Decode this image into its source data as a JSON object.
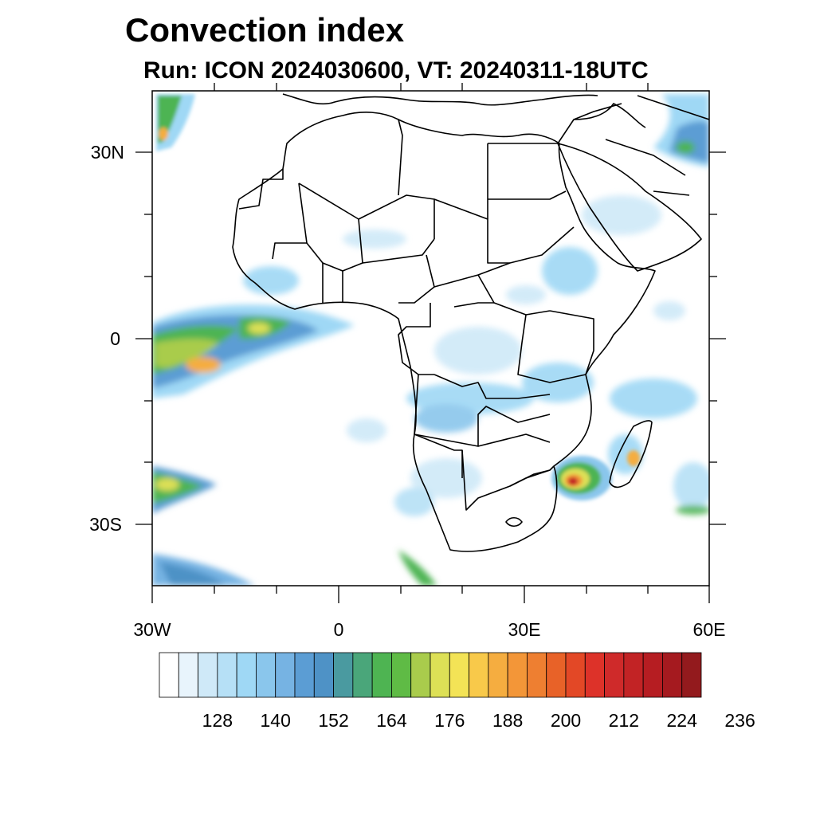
{
  "title": "Convection index",
  "subtitle": "Run: ICON 2024030600,  VT: 20240311-18UTC",
  "axes": {
    "lon_labels": [
      "30W",
      "0",
      "30E",
      "60E"
    ],
    "lat_labels": [
      "30N",
      "0",
      "30S"
    ],
    "lon_range": [
      -30,
      60
    ],
    "lat_range": [
      -40,
      40
    ]
  },
  "colorbar": {
    "colors": [
      "#ffffff",
      "#e8f4fc",
      "#cfe9f8",
      "#b6e0f6",
      "#9fd8f5",
      "#8ac6ec",
      "#76b3e3",
      "#5b9dd4",
      "#4e92c6",
      "#4a9aa0",
      "#4aa67a",
      "#4eb452",
      "#5fbb45",
      "#a9cc4c",
      "#dde056",
      "#f3e356",
      "#f8c94a",
      "#f5ad40",
      "#f39638",
      "#ee7f31",
      "#e86228",
      "#e34826",
      "#dd3229",
      "#cf2a2a",
      "#c22325",
      "#b61d22",
      "#a51a1f",
      "#931a1d"
    ],
    "tick_labels": [
      "128",
      "140",
      "152",
      "164",
      "176",
      "188",
      "200",
      "212",
      "224",
      "236"
    ]
  },
  "colors": {
    "border": "#000000",
    "frame": "#000000"
  }
}
